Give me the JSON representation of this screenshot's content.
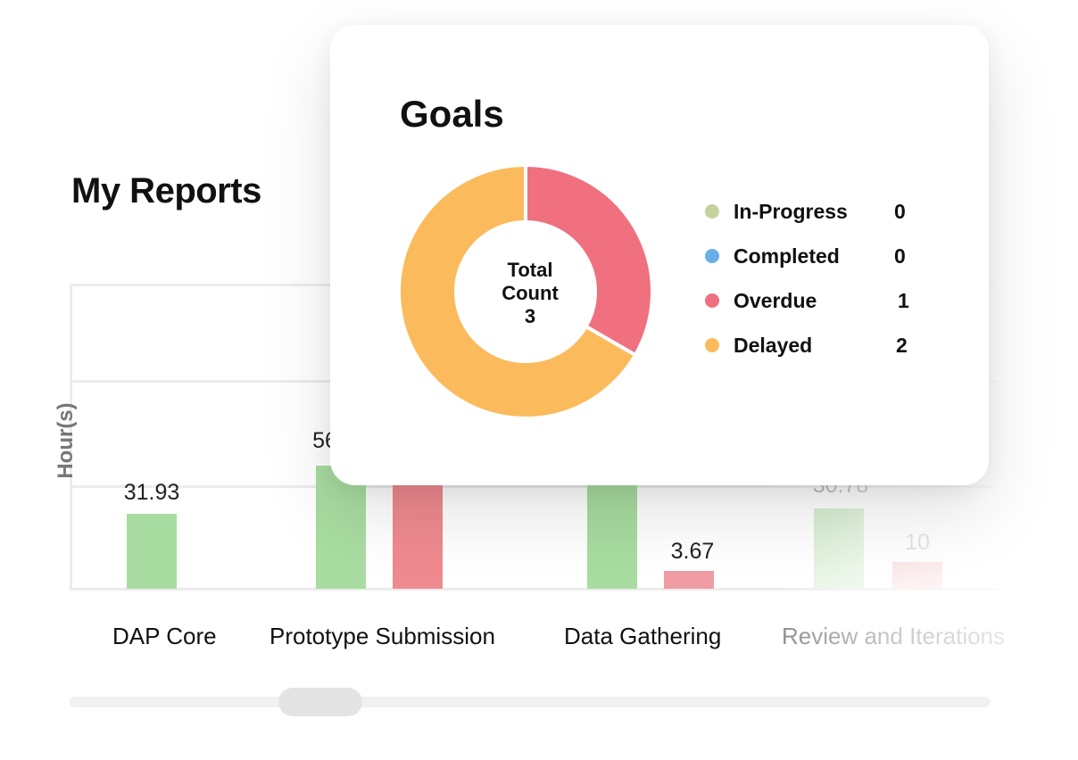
{
  "reports": {
    "title": "My Reports",
    "y_axis_label": "Hour(s)",
    "categories": [
      "DAP Core",
      "Prototype Submission",
      "Data Gathering",
      "Review and Iterations"
    ],
    "bar_labels": {
      "dap_core_green": "31.93",
      "prototype_green": "56",
      "data_gathering_red": "3.67",
      "review_green": "30.78",
      "review_red": "10"
    },
    "colors": {
      "green": "#a8dca0",
      "red": "#ef8a90"
    }
  },
  "goals": {
    "title": "Goals",
    "center_text": [
      "Total",
      "Count",
      "3"
    ],
    "legend": [
      {
        "label": "In-Progress",
        "value": "0",
        "color": "#c5d29c"
      },
      {
        "label": "Completed",
        "value": "0",
        "color": "#6aaee8"
      },
      {
        "label": "Overdue",
        "value": "1",
        "color": "#f07080"
      },
      {
        "label": "Delayed",
        "value": "2",
        "color": "#fbbb5c"
      }
    ]
  },
  "chart_data": {
    "type": "pie",
    "title": "Goals",
    "categories": [
      "In-Progress",
      "Completed",
      "Overdue",
      "Delayed"
    ],
    "values": [
      0,
      0,
      1,
      2
    ]
  }
}
